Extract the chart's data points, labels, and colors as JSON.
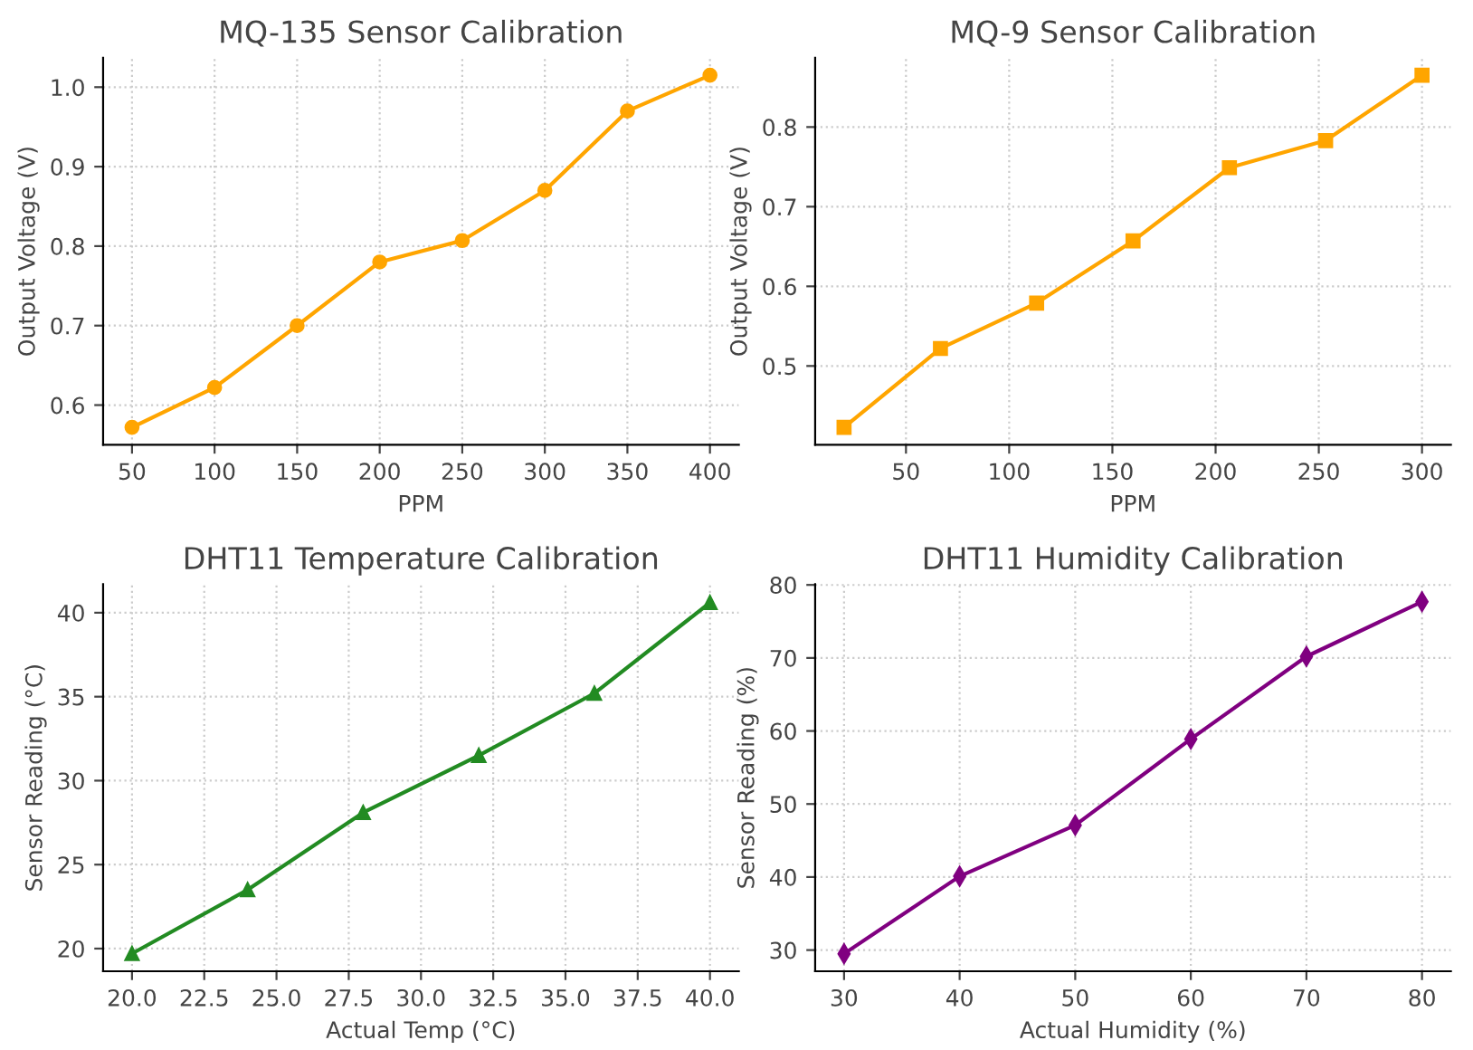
{
  "chart_data": [
    {
      "type": "line",
      "title": "MQ-135 Sensor Calibration",
      "xlabel": "PPM",
      "ylabel": "Output Voltage (V)",
      "x": [
        50,
        100,
        150,
        200,
        250,
        300,
        350,
        400
      ],
      "series": [
        {
          "color": "#ffa500",
          "values": [
            0.572,
            0.622,
            0.7,
            0.78,
            0.807,
            0.87,
            0.97,
            1.015
          ]
        }
      ],
      "xlim": [
        32.5,
        417.5
      ],
      "ylim": [
        0.55,
        1.037
      ],
      "xticks": [
        50,
        100,
        150,
        200,
        250,
        300,
        350,
        400
      ],
      "yticks": [
        {
          "value": 0.6,
          "label": "0.6"
        },
        {
          "value": 0.7,
          "label": "0.7"
        },
        {
          "value": 0.8,
          "label": "0.8"
        },
        {
          "value": 0.9,
          "label": "0.9"
        },
        {
          "value": 1.0,
          "label": "1.0"
        }
      ],
      "grid": true,
      "marker": "circle",
      "line_style": "solid"
    },
    {
      "type": "line",
      "title": "MQ-9 Sensor Calibration",
      "xlabel": "PPM",
      "ylabel": "Output Voltage (V)",
      "x": [
        20,
        66.7,
        113.3,
        160,
        206.7,
        253.3,
        300
      ],
      "series": [
        {
          "color": "#ffa500",
          "values": [
            0.423,
            0.522,
            0.579,
            0.657,
            0.749,
            0.783,
            0.865
          ]
        }
      ],
      "xlim": [
        6,
        314
      ],
      "ylim": [
        0.401,
        0.887
      ],
      "xticks": [
        50,
        100,
        150,
        200,
        250,
        300
      ],
      "yticks": [
        0.5,
        0.6,
        0.7,
        0.8
      ],
      "grid": true,
      "marker": "square",
      "line_style": "solid"
    },
    {
      "type": "line",
      "title": "DHT11 Temperature Calibration",
      "xlabel": "Actual Temp (°C)",
      "ylabel": "Sensor Reading (°C)",
      "x": [
        20,
        24,
        28,
        32,
        36,
        40
      ],
      "series": [
        {
          "color": "#228b22",
          "values": [
            19.7,
            23.5,
            28.1,
            31.5,
            35.2,
            40.6
          ]
        }
      ],
      "xlim": [
        19,
        41
      ],
      "ylim": [
        18.65,
        41.7
      ],
      "xticks": [
        {
          "value": 20,
          "label": "20.0"
        },
        {
          "value": 22.5,
          "label": "22.5"
        },
        {
          "value": 25,
          "label": "25.0"
        },
        {
          "value": 27.5,
          "label": "27.5"
        },
        {
          "value": 30,
          "label": "30.0"
        },
        {
          "value": 32.5,
          "label": "32.5"
        },
        {
          "value": 35,
          "label": "35.0"
        },
        {
          "value": 37.5,
          "label": "37.5"
        },
        {
          "value": 40,
          "label": "40.0"
        }
      ],
      "yticks": [
        20,
        25,
        30,
        35,
        40
      ],
      "grid": true,
      "marker": "triangle",
      "line_style": "solid"
    },
    {
      "type": "line",
      "title": "DHT11 Humidity Calibration",
      "xlabel": "Actual Humidity (%)",
      "ylabel": "Sensor Reading (%)",
      "x": [
        30,
        40,
        50,
        60,
        70,
        80
      ],
      "series": [
        {
          "color": "#800080",
          "values": [
            29.5,
            40.1,
            47.1,
            58.9,
            70.2,
            77.7
          ]
        }
      ],
      "xlim": [
        27.5,
        82.5
      ],
      "ylim": [
        27.1,
        80.1
      ],
      "xticks": [
        30,
        40,
        50,
        60,
        70,
        80
      ],
      "yticks": [
        30,
        40,
        50,
        60,
        70,
        80
      ],
      "grid": true,
      "marker": "diamond",
      "line_style": "solid"
    }
  ]
}
